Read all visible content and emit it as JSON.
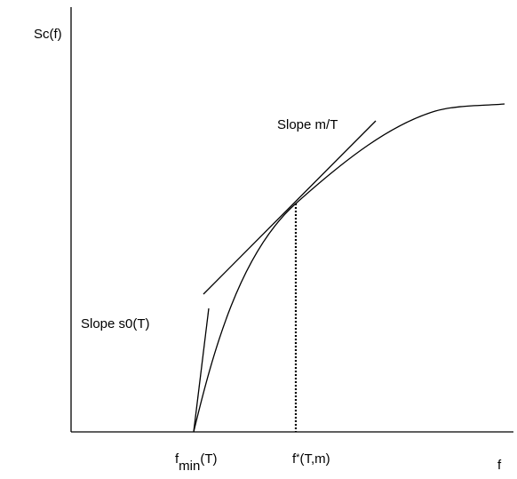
{
  "y_axis_label": "Sc(f)",
  "x_axis_label": "f",
  "tangent_label": "Slope m/T",
  "initial_slope_label": "Slope s0(T)",
  "fmin_label": {
    "main": "f",
    "sub": "min",
    "arg": "(T)"
  },
  "fstar_label": {
    "main": "f",
    "star": "*",
    "arg": "(T,m)"
  },
  "colors": {
    "stroke": "#000000",
    "background": "#ffffff"
  }
}
